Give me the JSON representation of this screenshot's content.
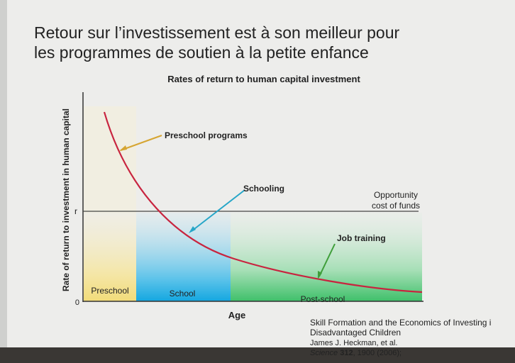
{
  "slide": {
    "title_lines": [
      "Retour sur l’investissement est à son meilleur pour",
      "les programmes de soutien à la petite enfance"
    ]
  },
  "figure": {
    "title": "Rates of return to human capital investment",
    "y_axis_label": "Rate of return to investment in human capital",
    "x_axis_label": "Age",
    "y_marker": "r",
    "origin": "0",
    "annotations": {
      "preschool_programs": "Preschool programs",
      "schooling": "Schooling",
      "opportunity_cost": [
        "Opportunity",
        "cost of funds"
      ],
      "job_training": "Job training"
    },
    "regions": [
      "Preschool",
      "School",
      "Post-school"
    ]
  },
  "citation": {
    "title_lines": [
      "Skill Formation and the Economics of Investing i",
      "Disadvantaged Children"
    ],
    "authors": "James J. Heckman, et al.",
    "journal": "Science",
    "volume": "312",
    "pages": ", 1900 (2006);"
  }
}
